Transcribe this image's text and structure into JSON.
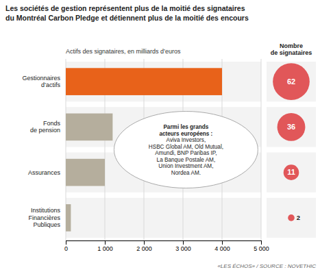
{
  "chart_data": {
    "type": "bar",
    "orientation": "horizontal",
    "title": "Les sociétés de gestion représentent plus de la moitié des signataires\ndu Montréal Carbon Pledge et détiennent plus de la moitié des encours",
    "subtitle": "Actifs des signataires, en milliards d’euros",
    "categories": [
      "Gestionnaires\nd’actifs",
      "Fonds\nde pension",
      "Assurances",
      "Institutions\nFi​nanciè​res\nPubliques"
    ],
    "values": [
      4000,
      1200,
      1000,
      130
    ],
    "colors": [
      "#E8621A",
      "#B5AE9D",
      "#B5AE9D",
      "#B5AE9D"
    ],
    "xlim": [
      0,
      5000
    ],
    "xticks": [
      0,
      {
        "value": 1000,
        "label": "1 000"
      },
      {
        "value": 2000,
        "label": "2 000"
      },
      {
        "value": 3000,
        "label": "3 000"
      },
      {
        "value": 4000,
        "label": "4 000"
      },
      {
        "value": 5000,
        "label": "5 000"
      }
    ],
    "grid": true,
    "sizes": [
      62,
      36,
      11,
      2
    ],
    "sizes_title": "Nombre\nde signataires",
    "annotation": [
      "Parmi les grands",
      "acteurs européens :",
      "Aviva Investors,",
      "HSBC Global AM, Old Mutual,",
      "Amundi, BNP Paribas IP,",
      "La Banque Postale AM,",
      "Union Investment AM,",
      "Nordea AM."
    ],
    "source": "«LES ÉCHOS» / SOURCE : NOVETHIC"
  }
}
